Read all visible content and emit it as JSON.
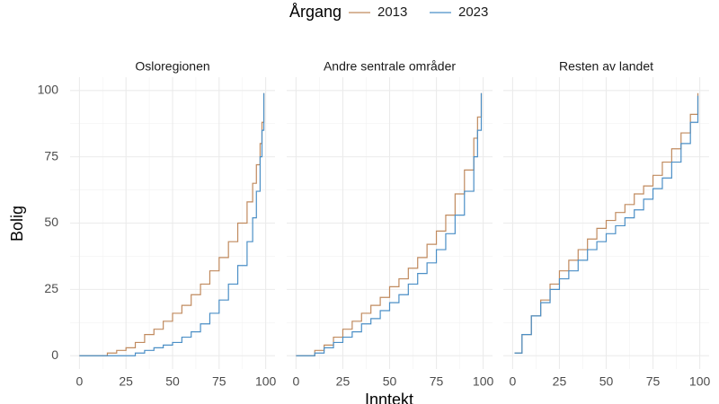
{
  "legend_title": "Årgang",
  "y_label": "Bolig",
  "x_label": "Inntekt",
  "chart_data": [
    {
      "type": "step",
      "title": "Osloregionen",
      "xlim": [
        -5,
        105
      ],
      "ylim": [
        -5,
        105
      ],
      "xticks": [
        0,
        25,
        50,
        75,
        100
      ],
      "yticks": [
        0,
        25,
        50,
        75,
        100
      ],
      "grid": true,
      "series": [
        {
          "name": "2013",
          "color": "#c08a5e",
          "x": [
            0,
            15,
            20,
            25,
            30,
            35,
            40,
            45,
            50,
            55,
            60,
            65,
            70,
            75,
            80,
            85,
            90,
            93,
            95,
            97,
            98,
            99
          ],
          "values": [
            0,
            1,
            2,
            3,
            5,
            8,
            10,
            13,
            16,
            19,
            23,
            27,
            32,
            37,
            43,
            50,
            58,
            65,
            72,
            80,
            88,
            99
          ]
        },
        {
          "name": "2023",
          "color": "#4b8fc6",
          "x": [
            0,
            25,
            30,
            35,
            40,
            45,
            50,
            55,
            60,
            65,
            70,
            75,
            80,
            85,
            90,
            93,
            95,
            97,
            98,
            99
          ],
          "values": [
            0,
            0,
            1,
            2,
            3,
            4,
            5,
            7,
            9,
            12,
            16,
            21,
            27,
            34,
            43,
            52,
            62,
            75,
            85,
            99
          ]
        }
      ]
    },
    {
      "type": "step",
      "title": "Andre sentrale områder",
      "xlim": [
        -5,
        105
      ],
      "ylim": [
        -5,
        105
      ],
      "xticks": [
        0,
        25,
        50,
        75,
        100
      ],
      "yticks": [
        0,
        25,
        50,
        75,
        100
      ],
      "grid": true,
      "series": [
        {
          "name": "2013",
          "color": "#c08a5e",
          "x": [
            0,
            5,
            10,
            15,
            20,
            25,
            30,
            35,
            40,
            45,
            50,
            55,
            60,
            65,
            70,
            75,
            80,
            85,
            90,
            95,
            97,
            99
          ],
          "values": [
            0,
            0,
            2,
            4,
            7,
            10,
            13,
            16,
            19,
            22,
            26,
            29,
            33,
            37,
            42,
            47,
            53,
            61,
            70,
            82,
            90,
            99
          ]
        },
        {
          "name": "2023",
          "color": "#4b8fc6",
          "x": [
            0,
            5,
            10,
            15,
            20,
            25,
            30,
            35,
            40,
            45,
            50,
            55,
            60,
            65,
            70,
            75,
            80,
            85,
            90,
            95,
            97,
            99
          ],
          "values": [
            0,
            0,
            1,
            3,
            5,
            7,
            9,
            12,
            14,
            17,
            20,
            23,
            27,
            31,
            35,
            40,
            46,
            53,
            62,
            75,
            85,
            99
          ]
        }
      ]
    },
    {
      "type": "step",
      "title": "Resten av landet",
      "xlim": [
        -5,
        105
      ],
      "ylim": [
        -5,
        105
      ],
      "xticks": [
        0,
        25,
        50,
        75,
        100
      ],
      "yticks": [
        0,
        25,
        50,
        75,
        100
      ],
      "grid": true,
      "series": [
        {
          "name": "2013",
          "color": "#c08a5e",
          "x": [
            1,
            5,
            10,
            15,
            20,
            25,
            30,
            35,
            40,
            45,
            50,
            55,
            60,
            65,
            70,
            75,
            80,
            85,
            90,
            95,
            99
          ],
          "values": [
            1,
            8,
            15,
            21,
            27,
            32,
            36,
            40,
            44,
            48,
            51,
            54,
            57,
            61,
            64,
            68,
            73,
            78,
            84,
            91,
            99
          ]
        },
        {
          "name": "2023",
          "color": "#4b8fc6",
          "x": [
            1,
            5,
            10,
            15,
            20,
            25,
            30,
            35,
            40,
            45,
            50,
            55,
            60,
            65,
            70,
            75,
            80,
            85,
            90,
            95,
            99
          ],
          "values": [
            1,
            8,
            15,
            20,
            25,
            29,
            32,
            36,
            40,
            43,
            46,
            49,
            52,
            55,
            59,
            63,
            67,
            73,
            80,
            88,
            98
          ]
        }
      ]
    }
  ]
}
